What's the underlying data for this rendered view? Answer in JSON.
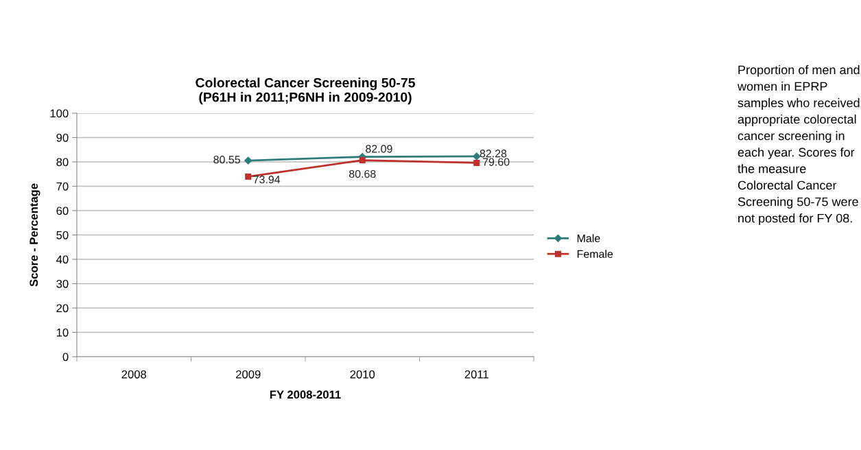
{
  "chart_data": {
    "type": "line",
    "title": "Colorectal Cancer Screening 50-75\n(P61H in 2011;P6NH in 2009-2010)",
    "xlabel": "FY 2008-2011",
    "ylabel": "Score - Percentage",
    "categories": [
      "2008",
      "2009",
      "2010",
      "2011"
    ],
    "series": [
      {
        "name": "Male",
        "color": "#2e7b7b",
        "marker": "diamond",
        "values": [
          null,
          80.55,
          82.09,
          82.28
        ],
        "value_labels": [
          null,
          "80.55",
          "82.09",
          "82.28"
        ]
      },
      {
        "name": "Female",
        "color": "#c0302a",
        "marker": "square",
        "values": [
          null,
          73.94,
          80.68,
          79.6
        ],
        "value_labels": [
          null,
          "73.94",
          "80.68",
          "79.60"
        ]
      }
    ],
    "ylim": [
      0,
      100
    ],
    "yticks": [
      0,
      10,
      20,
      30,
      40,
      50,
      60,
      70,
      80,
      90,
      100
    ],
    "grid": "y",
    "legend": "right",
    "annotations": [
      "Proportion of men and women in EPRP samples who received appropriate colorectal cancer screening in each year. Scores for the measure Colorectal Cancer Screening 50-75 were not posted for FY 08."
    ]
  }
}
